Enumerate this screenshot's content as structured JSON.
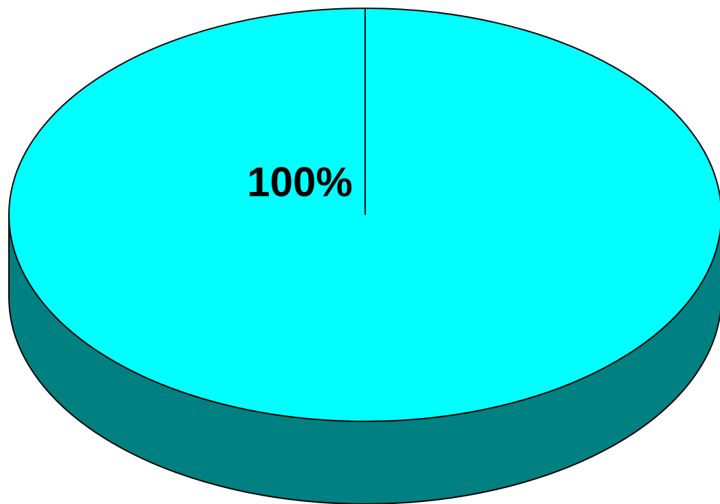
{
  "chart_data": {
    "type": "pie",
    "style": "3d",
    "categories": [
      ""
    ],
    "values": [
      100
    ],
    "data_labels": [
      "100%"
    ],
    "title": "",
    "legend": "none",
    "colors": {
      "top_face": "#00FFFF",
      "side_face": "#008080",
      "outline": "#000000",
      "background": "#FFFFFF"
    }
  }
}
